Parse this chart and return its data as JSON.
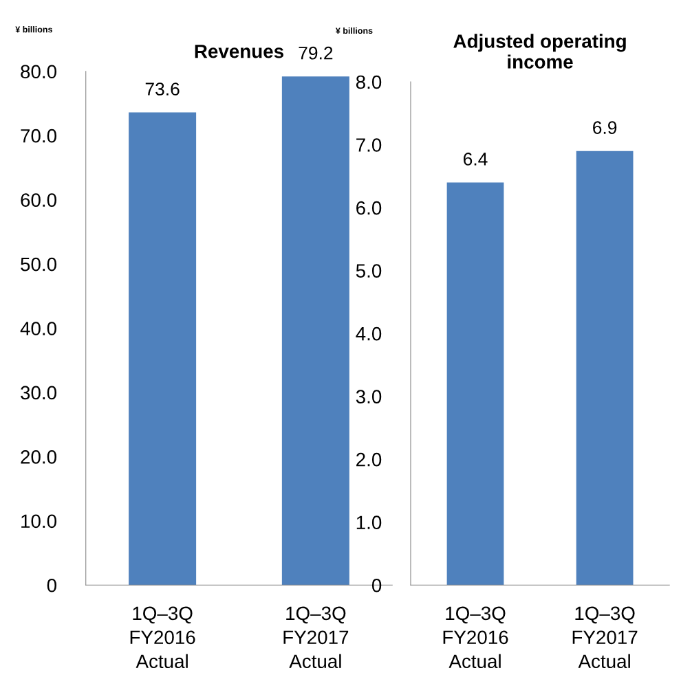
{
  "chart_data": [
    {
      "type": "bar",
      "title": "Revenues",
      "ylabel": "¥ billions",
      "categories": [
        "1Q–3Q\nFY2016\nActual",
        "1Q–3Q\nFY2017\nActual"
      ],
      "values": [
        73.6,
        79.2
      ],
      "color": "#4f81bd",
      "ylim": [
        0,
        80
      ],
      "yticks": [
        0,
        {
          "value": 10,
          "label": "10.0"
        },
        {
          "value": 20,
          "label": "20.0"
        },
        {
          "value": 30,
          "label": "30.0"
        },
        {
          "value": 40,
          "label": "40.0"
        },
        {
          "value": 50,
          "label": "50.0"
        },
        {
          "value": 60,
          "label": "60.0"
        },
        {
          "value": 70,
          "label": "70.0"
        },
        {
          "value": 80,
          "label": "80.0"
        }
      ],
      "data_labels": true,
      "grid": false,
      "legend": false
    },
    {
      "type": "bar",
      "title": "Adjusted operating\nincome",
      "ylabel": "¥ billions",
      "categories": [
        "1Q–3Q\nFY2016\nActual",
        "1Q–3Q\nFY2017\nActual"
      ],
      "values": [
        6.4,
        6.9
      ],
      "color": "#4f81bd",
      "ylim": [
        0,
        8
      ],
      "yticks": [
        0,
        {
          "value": 1,
          "label": "1.0"
        },
        {
          "value": 2,
          "label": "2.0"
        },
        {
          "value": 3,
          "label": "3.0"
        },
        {
          "value": 4,
          "label": "4.0"
        },
        {
          "value": 5,
          "label": "5.0"
        },
        {
          "value": 6,
          "label": "6.0"
        },
        {
          "value": 7,
          "label": "7.0"
        },
        {
          "value": 8,
          "label": "8.0"
        }
      ],
      "data_labels": true,
      "grid": false,
      "legend": false
    }
  ]
}
